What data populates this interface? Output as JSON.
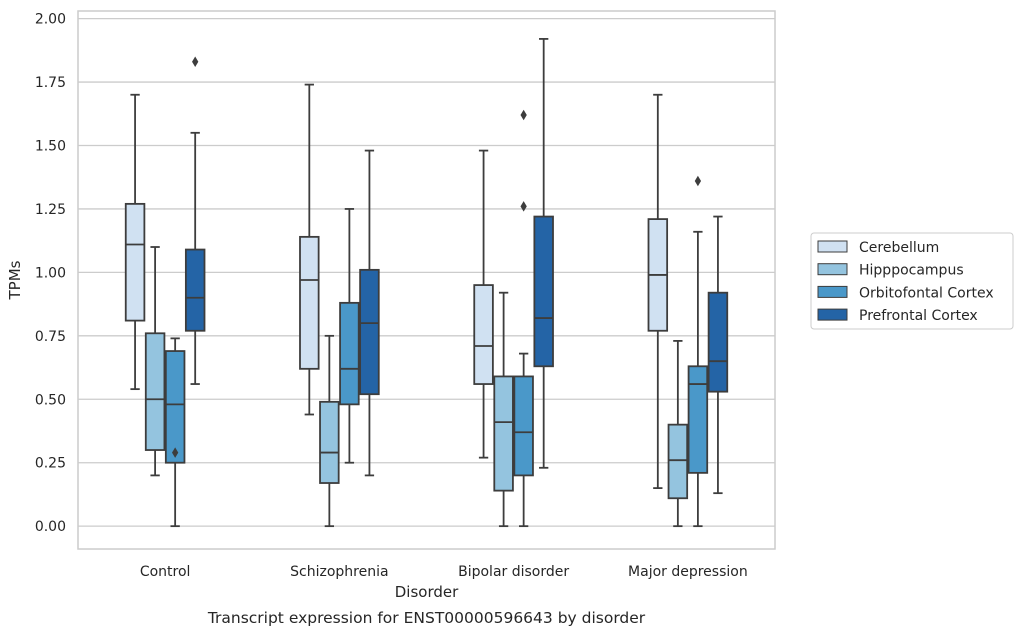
{
  "chart_data": {
    "type": "boxplot",
    "caption": "Transcript expression for ENST00000596643 by disorder",
    "xlabel": "Disorder",
    "ylabel": "TPMs",
    "ylim": [
      -0.09,
      2.03
    ],
    "yticks": [
      0.0,
      0.25,
      0.5,
      0.75,
      1.0,
      1.25,
      1.5,
      1.75,
      2.0
    ],
    "ytick_labels": [
      "0.00",
      "0.25",
      "0.50",
      "0.75",
      "1.00",
      "1.25",
      "1.50",
      "1.75",
      "2.00"
    ],
    "grid": "horizontal",
    "legend_position": "right",
    "categories": [
      "Control",
      "Schizophrenia",
      "Bipolar disorder",
      "Major depression"
    ],
    "series": [
      {
        "name": "Cerebellum",
        "color": "#d0e1f2",
        "boxes": [
          {
            "whisker_low": 0.54,
            "q1": 0.81,
            "median": 1.11,
            "q3": 1.27,
            "whisker_high": 1.7,
            "outliers": []
          },
          {
            "whisker_low": 0.44,
            "q1": 0.62,
            "median": 0.97,
            "q3": 1.14,
            "whisker_high": 1.74,
            "outliers": []
          },
          {
            "whisker_low": 0.27,
            "q1": 0.56,
            "median": 0.71,
            "q3": 0.95,
            "whisker_high": 1.48,
            "outliers": []
          },
          {
            "whisker_low": 0.15,
            "q1": 0.77,
            "median": 0.99,
            "q3": 1.21,
            "whisker_high": 1.7,
            "outliers": []
          }
        ]
      },
      {
        "name": "Hipppocampus",
        "color": "#94c4df",
        "boxes": [
          {
            "whisker_low": 0.2,
            "q1": 0.3,
            "median": 0.5,
            "q3": 0.76,
            "whisker_high": 1.1,
            "outliers": []
          },
          {
            "whisker_low": 0.0,
            "q1": 0.17,
            "median": 0.29,
            "q3": 0.49,
            "whisker_high": 0.75,
            "outliers": []
          },
          {
            "whisker_low": 0.0,
            "q1": 0.14,
            "median": 0.41,
            "q3": 0.59,
            "whisker_high": 0.92,
            "outliers": []
          },
          {
            "whisker_low": 0.0,
            "q1": 0.11,
            "median": 0.26,
            "q3": 0.4,
            "whisker_high": 0.73,
            "outliers": []
          }
        ]
      },
      {
        "name": "Orbitofontal Cortex",
        "color": "#4a98c9",
        "boxes": [
          {
            "whisker_low": 0.0,
            "q1": 0.25,
            "median": 0.48,
            "q3": 0.69,
            "whisker_high": 0.74,
            "outliers": [
              0.29
            ]
          },
          {
            "whisker_low": 0.25,
            "q1": 0.48,
            "median": 0.62,
            "q3": 0.88,
            "whisker_high": 1.25,
            "outliers": []
          },
          {
            "whisker_low": 0.0,
            "q1": 0.2,
            "median": 0.37,
            "q3": 0.59,
            "whisker_high": 0.68,
            "outliers": [
              1.26,
              1.62
            ]
          },
          {
            "whisker_low": 0.0,
            "q1": 0.21,
            "median": 0.56,
            "q3": 0.63,
            "whisker_high": 1.16,
            "outliers": [
              1.36
            ]
          }
        ]
      },
      {
        "name": "Prefrontal Cortex",
        "color": "#2464a6",
        "boxes": [
          {
            "whisker_low": 0.56,
            "q1": 0.77,
            "median": 0.9,
            "q3": 1.09,
            "whisker_high": 1.55,
            "outliers": [
              1.83
            ]
          },
          {
            "whisker_low": 0.2,
            "q1": 0.52,
            "median": 0.8,
            "q3": 1.01,
            "whisker_high": 1.48,
            "outliers": []
          },
          {
            "whisker_low": 0.23,
            "q1": 0.63,
            "median": 0.82,
            "q3": 1.22,
            "whisker_high": 1.92,
            "outliers": []
          },
          {
            "whisker_low": 0.13,
            "q1": 0.53,
            "median": 0.65,
            "q3": 0.92,
            "whisker_high": 1.22,
            "outliers": []
          }
        ]
      }
    ]
  }
}
